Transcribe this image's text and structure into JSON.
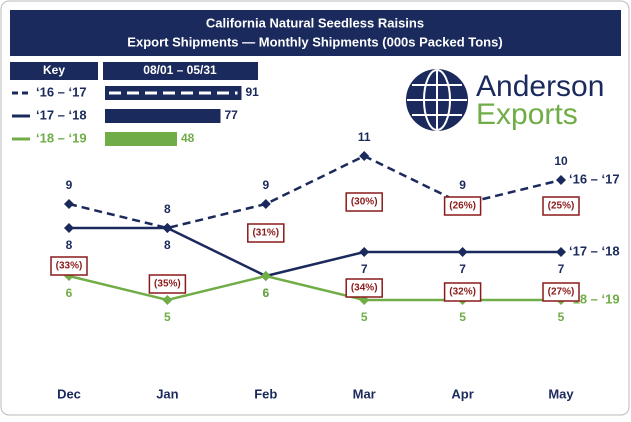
{
  "chart_data": {
    "type": "line",
    "title": "California Natural Seedless Raisins",
    "subtitle": "Export Shipments — Monthly Shipments (000s Packed Tons)",
    "brand": [
      "Anderson",
      "Exports"
    ],
    "key": {
      "title": "Key",
      "period": "08/01 – 05/31",
      "totals": [
        91,
        77,
        48
      ]
    },
    "categories": [
      "Dec",
      "Jan",
      "Feb",
      "Mar",
      "Apr",
      "May"
    ],
    "series": [
      {
        "name": "‘16 – ‘17",
        "color": "#1b2a5c",
        "dashed": true,
        "values": [
          9,
          8,
          9,
          11,
          9,
          10
        ]
      },
      {
        "name": "‘17 – ‘18",
        "color": "#1b2a5c",
        "dashed": false,
        "values": [
          8,
          8,
          6,
          7,
          7,
          7
        ]
      },
      {
        "name": "‘18 – ‘19",
        "color": "#70ad47",
        "dashed": false,
        "values": [
          6,
          5,
          6,
          5,
          5,
          5
        ]
      }
    ],
    "annotations": [
      {
        "category": 0,
        "text": "(33%)"
      },
      {
        "category": 1,
        "text": "(35%)"
      },
      {
        "category": 2,
        "text": "(31%)"
      },
      {
        "category": 3,
        "text": "(30%)"
      },
      {
        "category": 3,
        "text": "(34%)"
      },
      {
        "category": 4,
        "text": "(26%)"
      },
      {
        "category": 4,
        "text": "(32%)"
      },
      {
        "category": 5,
        "text": "(25%)"
      },
      {
        "category": 5,
        "text": "(27%)"
      }
    ]
  }
}
